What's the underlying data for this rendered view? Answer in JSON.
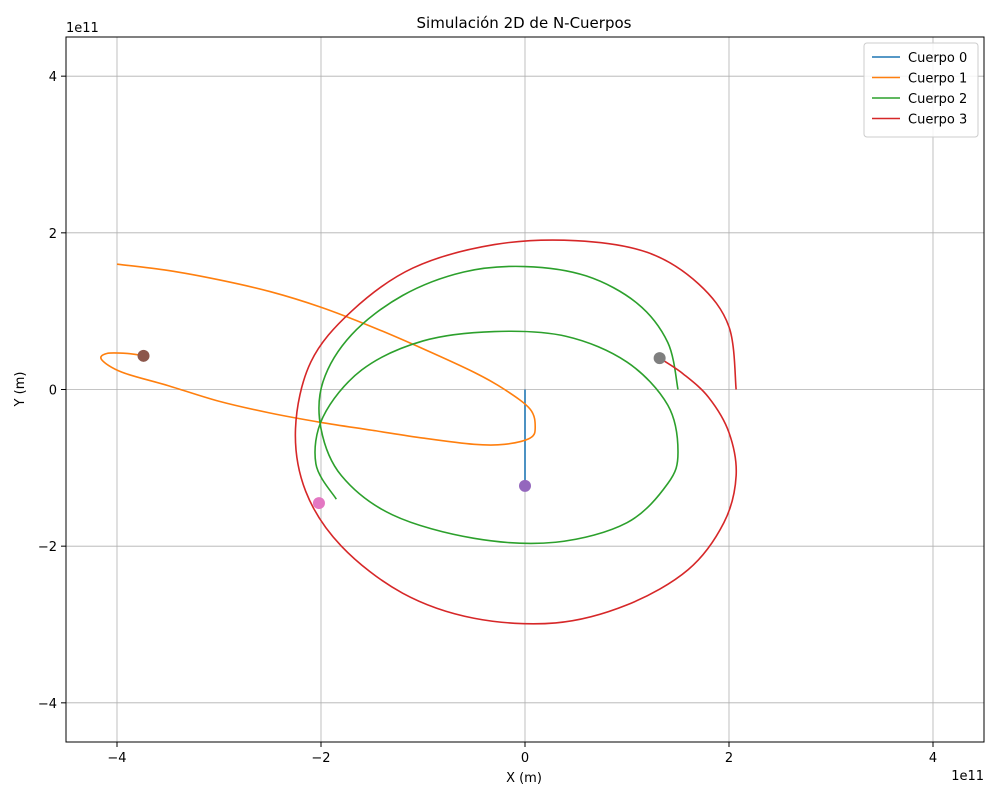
{
  "chart_data": {
    "type": "line",
    "title": "Simulación 2D de N-Cuerpos",
    "xlabel": "X (m)",
    "ylabel": "Y (m)",
    "x_offset_label": "1e11",
    "y_offset_label": "1e11",
    "xlim": [
      -4.5,
      4.5
    ],
    "ylim": [
      -4.5,
      4.5
    ],
    "xticks": [
      -4,
      -2,
      0,
      2,
      4
    ],
    "yticks": [
      -4,
      -2,
      0,
      2,
      4
    ],
    "xtick_labels": [
      "−4",
      "−2",
      "0",
      "2",
      "4"
    ],
    "ytick_labels": [
      "−4",
      "−2",
      "0",
      "2",
      "4"
    ],
    "grid": true,
    "legend_position": "top-right",
    "series": [
      {
        "name": "Cuerpo 0",
        "color": "#1f77b4",
        "x": [
          0,
          0
        ],
        "y": [
          0,
          -1.23
        ]
      },
      {
        "name": "Cuerpo 1",
        "color": "#ff7f0e",
        "x": [
          -4.0,
          -3.5,
          -3.0,
          -2.5,
          -2.0,
          -1.5,
          -1.0,
          -0.5,
          -0.2,
          0.05,
          0.1,
          0.05,
          -0.2,
          -0.5,
          -1.0,
          -1.5,
          -2.0,
          -2.5,
          -3.0,
          -3.5,
          -3.95,
          -4.15,
          -4.1,
          -3.9,
          -3.74
        ],
        "y": [
          1.6,
          1.52,
          1.4,
          1.25,
          1.05,
          0.8,
          0.52,
          0.22,
          0.0,
          -0.25,
          -0.48,
          -0.62,
          -0.7,
          -0.7,
          -0.62,
          -0.52,
          -0.42,
          -0.3,
          -0.15,
          0.05,
          0.22,
          0.38,
          0.46,
          0.46,
          0.43
        ]
      },
      {
        "name": "Cuerpo 2",
        "color": "#2ca02c",
        "x": [
          1.5,
          1.4,
          1.1,
          0.6,
          0.0,
          -0.6,
          -1.2,
          -1.7,
          -1.98,
          -2.0,
          -1.8,
          -1.3,
          -0.5,
          0.3,
          1.0,
          1.4,
          1.5,
          1.4,
          1.0,
          0.4,
          -0.3,
          -1.0,
          -1.6,
          -1.98,
          -2.05,
          -1.85
        ],
        "y": [
          0.0,
          0.6,
          1.1,
          1.45,
          1.57,
          1.5,
          1.2,
          0.7,
          0.1,
          -0.5,
          -1.1,
          -1.6,
          -1.9,
          -1.95,
          -1.7,
          -1.2,
          -0.8,
          -0.2,
          0.35,
          0.68,
          0.74,
          0.62,
          0.25,
          -0.35,
          -0.95,
          -1.4
        ]
      },
      {
        "name": "Cuerpo 3",
        "color": "#d62728",
        "x": [
          2.07,
          2.0,
          1.7,
          1.2,
          0.5,
          -0.3,
          -1.1,
          -1.7,
          -2.1,
          -2.25,
          -2.15,
          -1.8,
          -1.2,
          -0.5,
          0.3,
          1.0,
          1.6,
          1.95,
          2.07,
          2.0,
          1.8,
          1.55,
          1.32
        ],
        "y": [
          0.0,
          0.8,
          1.35,
          1.75,
          1.9,
          1.85,
          1.55,
          1.0,
          0.35,
          -0.5,
          -1.3,
          -2.0,
          -2.6,
          -2.92,
          -2.98,
          -2.75,
          -2.3,
          -1.7,
          -1.1,
          -0.55,
          -0.1,
          0.2,
          0.4
        ]
      }
    ],
    "markers": [
      {
        "x": -3.74,
        "y": 0.43,
        "color": "#8c564b"
      },
      {
        "x": 0.0,
        "y": -1.23,
        "color": "#9467bd"
      },
      {
        "x": -2.02,
        "y": -1.45,
        "color": "#e377c2"
      },
      {
        "x": 1.32,
        "y": 0.4,
        "color": "#7f7f7f"
      }
    ]
  }
}
